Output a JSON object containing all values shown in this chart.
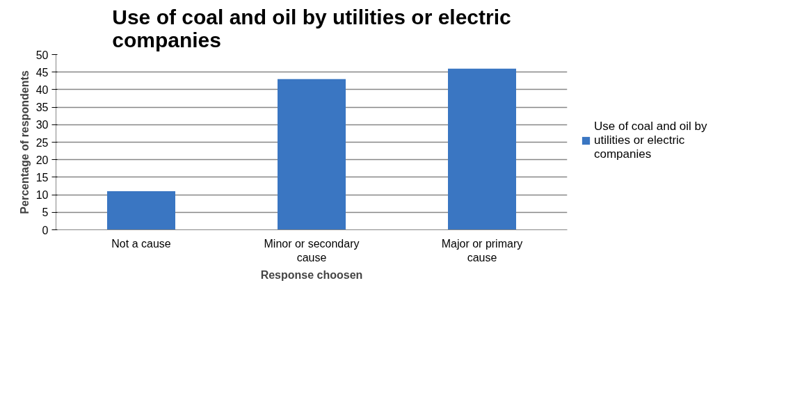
{
  "chart_data": {
    "type": "bar",
    "title": "Use of coal and oil by utilities or electric companies",
    "xlabel": "Response choosen",
    "ylabel": "Percentage of respondents",
    "categories": [
      "Not a cause",
      "Minor or secondary cause",
      "Major or primary cause"
    ],
    "series": [
      {
        "name": "Use of coal and oil by utilities or electric companies",
        "color": "#3a76c2",
        "values": [
          11,
          43,
          46
        ]
      }
    ],
    "ylim": [
      0,
      50
    ],
    "yticks": [
      0,
      5,
      10,
      15,
      20,
      25,
      30,
      35,
      40,
      45,
      50
    ],
    "grid": "y",
    "legend": "right"
  }
}
